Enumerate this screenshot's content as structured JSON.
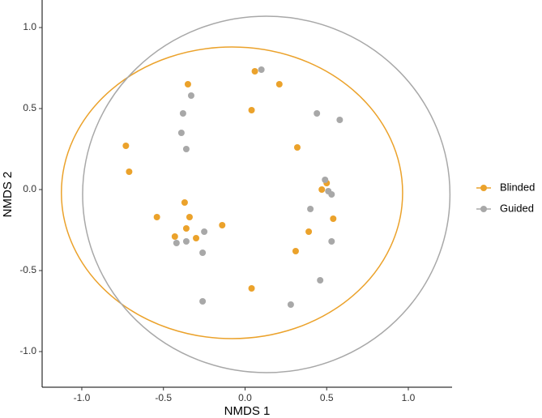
{
  "chart_data": {
    "type": "scatter",
    "x_label": "NMDS 1",
    "y_label": "NMDS 2",
    "xlim": [
      -1.243,
      1.268
    ],
    "ylim": [
      -1.22,
      1.17
    ],
    "xticks": [
      {
        "value": -1,
        "label": "-1.0"
      },
      {
        "value": -0.5,
        "label": "-0.5"
      },
      {
        "value": 0,
        "label": "0.0"
      },
      {
        "value": 0.5,
        "label": "0.5"
      },
      {
        "value": 1,
        "label": "1.0"
      }
    ],
    "yticks": [
      {
        "value": -1,
        "label": "-1.0"
      },
      {
        "value": -0.5,
        "label": "-0.5"
      },
      {
        "value": 0,
        "label": "0.0"
      },
      {
        "value": 0.5,
        "label": "0.5"
      },
      {
        "value": 1,
        "label": "1.0"
      }
    ],
    "legend": "right",
    "series": [
      {
        "name": "Blinded",
        "color": "#EBA22B",
        "x": [
          -0.35,
          0.06,
          0.21,
          0.04,
          -0.73,
          -0.71,
          0.32,
          -0.37,
          -0.54,
          -0.34,
          -0.36,
          -0.43,
          -0.3,
          -0.14,
          0.47,
          0.5,
          0.54,
          0.39,
          0.31,
          0.04
        ],
        "values": [
          0.65,
          0.73,
          0.65,
          0.49,
          0.27,
          0.11,
          0.26,
          -0.08,
          -0.17,
          -0.17,
          -0.24,
          -0.29,
          -0.3,
          -0.22,
          0.0,
          0.04,
          -0.18,
          -0.26,
          -0.38,
          -0.61
        ],
        "ellipse": {
          "cx": -0.08,
          "cy": -0.02,
          "rx": 1.045,
          "ry": 0.9
        }
      },
      {
        "name": "Guided",
        "color": "#A8A8A8",
        "x": [
          0.1,
          -0.33,
          -0.38,
          -0.39,
          -0.36,
          0.44,
          0.58,
          0.49,
          0.51,
          0.53,
          0.4,
          0.53,
          -0.42,
          -0.36,
          -0.25,
          -0.26,
          0.46,
          -0.26,
          0.28
        ],
        "values": [
          0.74,
          0.58,
          0.47,
          0.35,
          0.25,
          0.47,
          0.43,
          0.06,
          -0.01,
          -0.03,
          -0.12,
          -0.32,
          -0.33,
          -0.32,
          -0.26,
          -0.39,
          -0.56,
          -0.69,
          -0.71
        ],
        "ellipse": {
          "cx": 0.13,
          "cy": -0.03,
          "rx": 1.125,
          "ry": 1.1
        }
      }
    ]
  }
}
